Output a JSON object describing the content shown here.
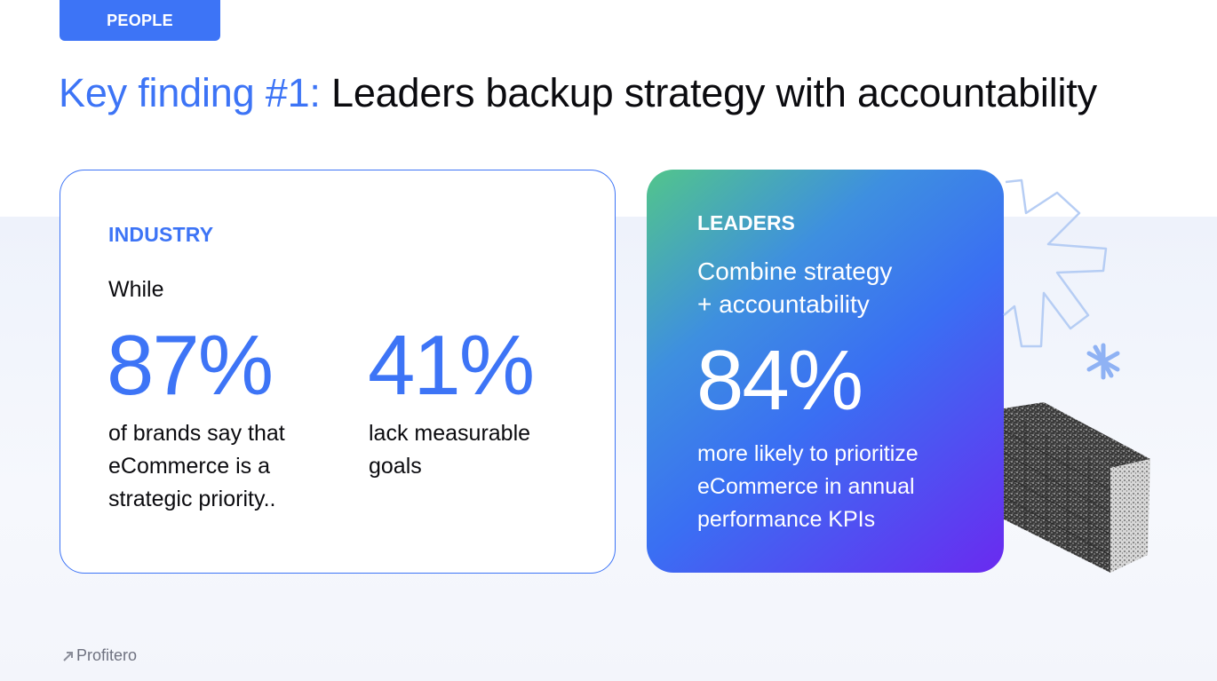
{
  "header": {
    "tag": "PEOPLE",
    "title_accent": "Key finding #1:",
    "title_rest": " Leaders backup strategy with accountability"
  },
  "industry": {
    "label": "INDUSTRY",
    "intro": "While",
    "stat1": {
      "value": "87%",
      "lines": [
        "of brands say that",
        "eCommerce is a",
        "strategic priority.."
      ]
    },
    "stat2": {
      "value": "41%",
      "lines": [
        "lack measurable",
        "goals"
      ]
    }
  },
  "leaders": {
    "label": "LEADERS",
    "headline_lines": [
      "Combine strategy",
      "+ accountability"
    ],
    "value": "84%",
    "lines": [
      "more likely to prioritize",
      "eCommerce in annual",
      "performance KPIs"
    ]
  },
  "footer": {
    "logo_text": "Profitero",
    "logo_icon": "arrow-logo-icon"
  },
  "colors": {
    "accent": "#3d74f6",
    "gradient_start": "#52c58b",
    "gradient_end": "#6a2af0"
  }
}
